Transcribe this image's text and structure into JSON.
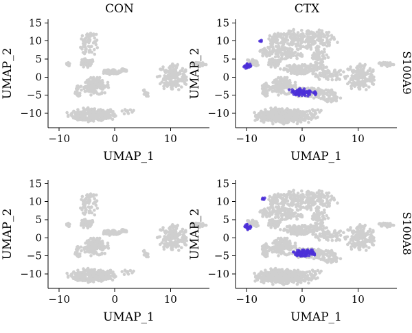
{
  "figure": {
    "column_titles": [
      "CON",
      "CTX"
    ],
    "row_labels": [
      "S100A9",
      "S100A8"
    ]
  },
  "chart_data": {
    "type": "scatter",
    "layout": "facet-grid",
    "xlabel": "UMAP_1",
    "ylabel": "UMAP_2",
    "xlim": [
      -12,
      17
    ],
    "ylim": [
      -14,
      16
    ],
    "xticks": [
      -10,
      0,
      10
    ],
    "yticks": [
      -10,
      -5,
      0,
      5,
      10,
      15
    ],
    "grid": false,
    "colors": {
      "background_cells": "#cfcfcf",
      "expression_high": "#4b2fd8"
    },
    "base_clusters": [
      {
        "cx": -4.0,
        "cy": -10.5,
        "rx": 4.0,
        "ry": 1.8,
        "n": 260
      },
      {
        "cx": -3.5,
        "cy": -2.5,
        "rx": 2.3,
        "ry": 2.2,
        "n": 130
      },
      {
        "cx": -5.0,
        "cy": 3.8,
        "rx": 1.2,
        "ry": 1.2,
        "n": 40
      },
      {
        "cx": -4.5,
        "cy": 9.5,
        "rx": 1.6,
        "ry": 3.2,
        "n": 60
      },
      {
        "cx": -0.6,
        "cy": 1.5,
        "rx": 1.8,
        "ry": 0.6,
        "n": 50
      },
      {
        "cx": 1.5,
        "cy": 1.8,
        "rx": 0.8,
        "ry": 0.5,
        "n": 15
      },
      {
        "cx": 10.5,
        "cy": 0.0,
        "rx": 2.5,
        "ry": 3.5,
        "n": 160
      },
      {
        "cx": 15.0,
        "cy": 3.6,
        "rx": 1.4,
        "ry": 0.6,
        "n": 30
      },
      {
        "cx": -6.8,
        "cy": -4.0,
        "rx": 0.7,
        "ry": 2.0,
        "n": 20
      },
      {
        "cx": 5.5,
        "cy": -4.8,
        "rx": 0.5,
        "ry": 1.3,
        "n": 14
      },
      {
        "cx": -8.5,
        "cy": 3.5,
        "rx": 0.6,
        "ry": 0.6,
        "n": 8
      },
      {
        "cx": 2.5,
        "cy": -9.5,
        "rx": 1.2,
        "ry": 0.8,
        "n": 10
      }
    ],
    "ctx_extra_clusters": [
      {
        "cx": 0.5,
        "cy": 10.5,
        "rx": 5.5,
        "ry": 2.5,
        "n": 220
      },
      {
        "cx": -2.5,
        "cy": 6.5,
        "rx": 2.5,
        "ry": 1.6,
        "n": 80
      },
      {
        "cx": 3.0,
        "cy": 5.5,
        "rx": 1.5,
        "ry": 2.5,
        "n": 60
      },
      {
        "cx": 0.0,
        "cy": 2.5,
        "rx": 4.0,
        "ry": 1.2,
        "n": 90
      },
      {
        "cx": 5.0,
        "cy": 0.5,
        "rx": 3.0,
        "ry": 1.5,
        "n": 60
      },
      {
        "cx": 1.5,
        "cy": -4.3,
        "rx": 3.0,
        "ry": 1.4,
        "n": 120
      },
      {
        "cx": 5.0,
        "cy": -6.0,
        "rx": 1.8,
        "ry": 1.0,
        "n": 30
      },
      {
        "cx": -3.0,
        "cy": -11.0,
        "rx": 5.0,
        "ry": 2.0,
        "n": 220
      },
      {
        "cx": -6.5,
        "cy": -3.0,
        "rx": 0.7,
        "ry": 1.8,
        "n": 20
      },
      {
        "cx": -9.0,
        "cy": 4.0,
        "rx": 1.5,
        "ry": 1.2,
        "n": 40
      },
      {
        "cx": -6.5,
        "cy": 6.8,
        "rx": 1.0,
        "ry": 1.2,
        "n": 25
      }
    ],
    "panels": [
      {
        "condition": "CON",
        "gene": "S100A9",
        "highlights": []
      },
      {
        "condition": "CTX",
        "gene": "S100A9",
        "highlights": [
          {
            "cx": -9.8,
            "cy": 3.0,
            "rx": 0.7,
            "ry": 0.8,
            "n": 22
          },
          {
            "cx": 0.2,
            "cy": -4.2,
            "rx": 2.3,
            "ry": 1.0,
            "n": 75
          },
          {
            "cx": -7.5,
            "cy": 10.0,
            "rx": 0.2,
            "ry": 0.5,
            "n": 4
          }
        ]
      },
      {
        "condition": "CON",
        "gene": "S100A8",
        "highlights": []
      },
      {
        "condition": "CTX",
        "gene": "S100A8",
        "highlights": [
          {
            "cx": -9.8,
            "cy": 3.0,
            "rx": 0.7,
            "ry": 0.8,
            "n": 20
          },
          {
            "cx": 0.2,
            "cy": -4.2,
            "rx": 2.3,
            "ry": 1.0,
            "n": 70
          },
          {
            "cx": -7.0,
            "cy": 11.0,
            "rx": 0.3,
            "ry": 0.6,
            "n": 5
          }
        ]
      }
    ]
  }
}
